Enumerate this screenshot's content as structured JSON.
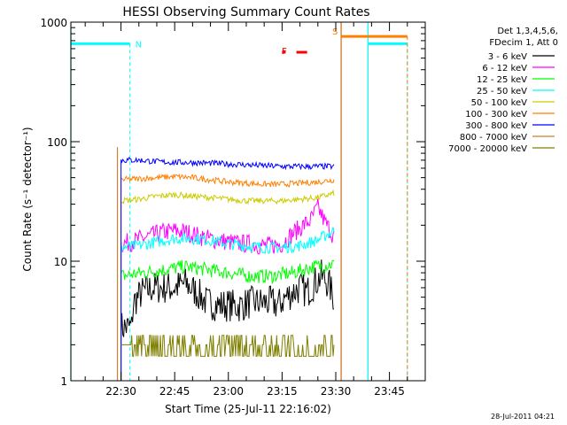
{
  "chart_data": {
    "type": "line",
    "title": "HESSI Observing Summary Count Rates",
    "xlabel": "Start Time (25-Jul-11 22:16:02)",
    "ylabel": "Count Rate (s⁻¹ detector⁻¹)",
    "yscale": "log",
    "ylim": [
      1,
      1000
    ],
    "xlim_minutes_after_2230": [
      -14,
      85
    ],
    "x_ticks": [
      {
        "label": "22:30",
        "min": 0
      },
      {
        "label": "22:45",
        "min": 15
      },
      {
        "label": "23:00",
        "min": 30
      },
      {
        "label": "23:15",
        "min": 45
      },
      {
        "label": "23:30",
        "min": 60
      },
      {
        "label": "23:45",
        "min": 75
      }
    ],
    "y_ticks": [
      {
        "label": "1",
        "value": 1
      },
      {
        "label": "10",
        "value": 10
      },
      {
        "label": "100",
        "value": 100
      },
      {
        "label": "1000",
        "value": 1000
      }
    ],
    "grid": false,
    "legend_position": "right",
    "legend_header": [
      "Det 1,3,4,5,6,",
      "FDecim 1, Att 0"
    ],
    "series": [
      {
        "name": "3 - 6 keV",
        "color": "#000000",
        "x": [
          0,
          3,
          3.5,
          6,
          9,
          12,
          15,
          18,
          21,
          24,
          27,
          30,
          33,
          36,
          39,
          42,
          44,
          46,
          48,
          50,
          52,
          54,
          56,
          58,
          59.5
        ],
        "y": [
          2.8,
          2.8,
          4.5,
          5.5,
          6,
          6,
          6,
          6.5,
          5.5,
          4.5,
          4.3,
          4.3,
          4.2,
          4.5,
          4.5,
          4.5,
          4.3,
          5,
          5.5,
          6,
          5.5,
          6.5,
          7.5,
          6.5,
          4.8
        ]
      },
      {
        "name": "6 - 12 keV",
        "color": "#ff00ff",
        "x": [
          0,
          3,
          6,
          9,
          12,
          15,
          18,
          21,
          24,
          27,
          30,
          33,
          36,
          39,
          42,
          45,
          47,
          49,
          51,
          53,
          55,
          57,
          59.5
        ],
        "y": [
          14,
          14.5,
          15.5,
          16.5,
          17.5,
          18,
          17.5,
          16.5,
          15.5,
          15,
          14.5,
          14,
          14,
          13.5,
          13.5,
          14,
          16,
          18,
          20,
          22,
          28,
          21,
          16
        ]
      },
      {
        "name": "12 - 25 keV",
        "color": "#00ff00",
        "x": [
          0,
          6,
          12,
          18,
          24,
          30,
          36,
          42,
          48,
          54,
          59.5
        ],
        "y": [
          7.5,
          8,
          8.5,
          9,
          8.5,
          8,
          7.5,
          7.5,
          8,
          9,
          9.5
        ]
      },
      {
        "name": "25 - 50 keV",
        "color": "#00ffff",
        "x": [
          0,
          5,
          10,
          15,
          20,
          25,
          30,
          35,
          40,
          45,
          50,
          55,
          59.5
        ],
        "y": [
          13,
          13.5,
          14.5,
          15.5,
          15.5,
          15,
          14,
          13.5,
          13,
          13,
          13.5,
          15,
          18
        ]
      },
      {
        "name": "50 - 100 keV",
        "color": "#cccc00",
        "x": [
          0,
          5,
          10,
          15,
          20,
          25,
          30,
          35,
          40,
          45,
          50,
          55,
          59.5
        ],
        "y": [
          32,
          33,
          35,
          36,
          35,
          34,
          33,
          32,
          32,
          32,
          33,
          34,
          37
        ]
      },
      {
        "name": "100 - 300 keV",
        "color": "#ff7f00",
        "x": [
          0,
          5,
          10,
          15,
          20,
          25,
          30,
          35,
          40,
          45,
          50,
          55,
          59.5
        ],
        "y": [
          48,
          49,
          50,
          51,
          50,
          48,
          46,
          45,
          44,
          44,
          45,
          46,
          48
        ]
      },
      {
        "name": "300 - 800 keV",
        "color": "#0000ff",
        "x": [
          0,
          5,
          10,
          15,
          20,
          25,
          30,
          35,
          40,
          45,
          50,
          55,
          59.5
        ],
        "y": [
          70,
          70,
          68,
          67,
          67,
          66,
          65,
          64,
          63,
          62,
          62,
          62,
          62
        ]
      },
      {
        "name": "800 - 7000 keV",
        "color": "#cc7f33",
        "x": [],
        "y": []
      },
      {
        "name": "7000 - 20000 keV",
        "color": "#7f7f00",
        "x": [
          0,
          3,
          3.5,
          10,
          10.5,
          20,
          20.5,
          30,
          30.5,
          44,
          44.5,
          59.5
        ],
        "y": [
          2.0,
          2.0,
          1.6,
          1.6,
          2.4,
          2.4,
          1.6,
          1.6,
          2.0,
          2.0,
          1.6,
          1.6
        ]
      }
    ],
    "bands": [
      {
        "label": "N",
        "color": "#00ffff",
        "level": 660,
        "segments": [
          [
            -14,
            2.5
          ],
          [
            69,
            80
          ]
        ],
        "dashed_edges": [
          2.5,
          80
        ],
        "solid_edges": [
          -14,
          69
        ]
      },
      {
        "label": "S",
        "color": "#ff7f00",
        "level": 760,
        "segments": [
          [
            61.5,
            80
          ]
        ],
        "dashed_edges": [
          80
        ],
        "solid_edges": [
          61.5
        ]
      }
    ],
    "saa_edges": [
      -1,
      61.5
    ],
    "flag_label": "F",
    "flag_color": "#ff0000",
    "flag_markers": [
      [
        45,
        46
      ],
      [
        49,
        52
      ]
    ]
  },
  "footer": {
    "timestamp": "28-Jul-2011 04:21"
  }
}
